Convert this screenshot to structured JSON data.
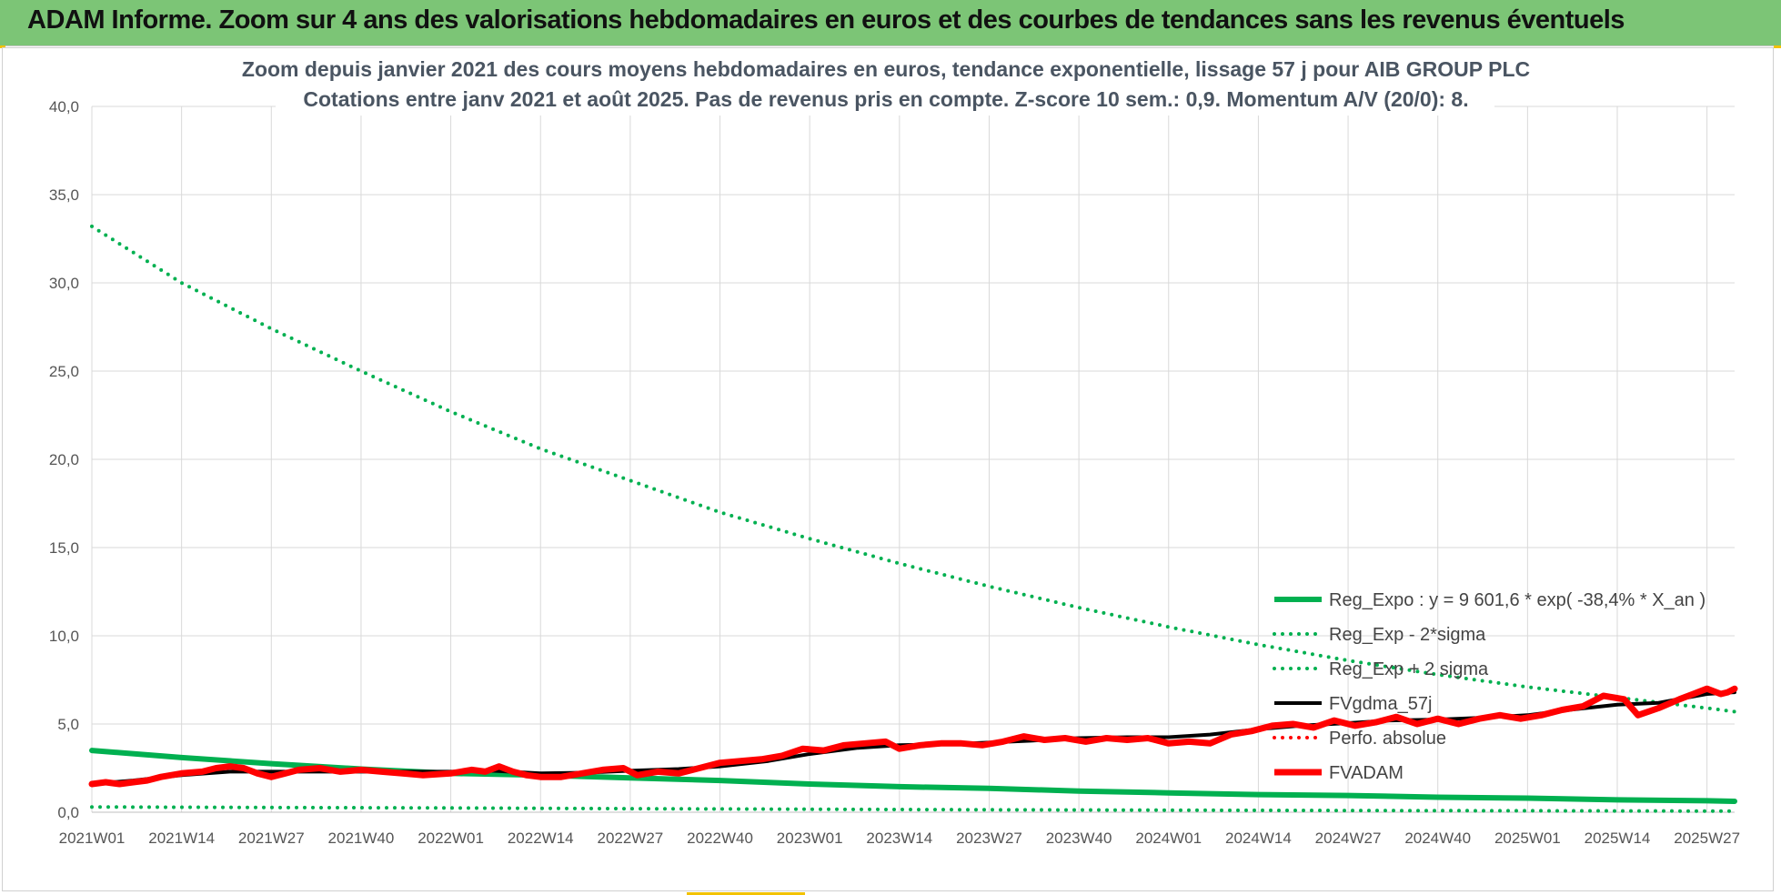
{
  "header": {
    "title": "ADAM Informe. Zoom sur 4 ans des valorisations hebdomadaires en euros et des courbes de tendances sans les revenus éventuels"
  },
  "chart_data": {
    "type": "line",
    "title_lines": [
      "Zoom depuis janvier 2021 des cours moyens hebdomadaires en euros, tendance exponentielle, lissage 57 j pour AIB GROUP PLC",
      "Cotations entre janv 2021 et août 2025.  Pas de revenus pris en compte. Z-score 10 sem.: 0,9. Momentum A/V (20/0): 8."
    ],
    "xlabel": "",
    "ylabel": "",
    "ylim": [
      0,
      40
    ],
    "y_ticks": [
      "0,0",
      "5,0",
      "10,0",
      "15,0",
      "20,0",
      "25,0",
      "30,0",
      "35,0",
      "40,0"
    ],
    "x_range_weeks": [
      0,
      238
    ],
    "x_ticks": [
      {
        "week": 0,
        "label": "2021W01"
      },
      {
        "week": 13,
        "label": "2021W14"
      },
      {
        "week": 26,
        "label": "2021W27"
      },
      {
        "week": 39,
        "label": "2021W40"
      },
      {
        "week": 52,
        "label": "2022W01"
      },
      {
        "week": 65,
        "label": "2022W14"
      },
      {
        "week": 78,
        "label": "2022W27"
      },
      {
        "week": 91,
        "label": "2022W40"
      },
      {
        "week": 104,
        "label": "2023W01"
      },
      {
        "week": 117,
        "label": "2023W14"
      },
      {
        "week": 130,
        "label": "2023W27"
      },
      {
        "week": 143,
        "label": "2023W40"
      },
      {
        "week": 156,
        "label": "2024W01"
      },
      {
        "week": 169,
        "label": "2024W14"
      },
      {
        "week": 182,
        "label": "2024W27"
      },
      {
        "week": 195,
        "label": "2024W40"
      },
      {
        "week": 208,
        "label": "2025W01"
      },
      {
        "week": 221,
        "label": "2025W14"
      },
      {
        "week": 234,
        "label": "2025W27"
      }
    ],
    "grid": true,
    "legend_position": "right",
    "series": [
      {
        "name": "Reg_Expo : y = 9 601,6 * exp( -38,4% *  X_an )",
        "color": "#00b050",
        "style": "solid",
        "width": 6,
        "points": [
          [
            0,
            3.5
          ],
          [
            13,
            3.1
          ],
          [
            26,
            2.75
          ],
          [
            39,
            2.45
          ],
          [
            52,
            2.2
          ],
          [
            65,
            2.1
          ],
          [
            78,
            1.95
          ],
          [
            91,
            1.8
          ],
          [
            104,
            1.6
          ],
          [
            117,
            1.45
          ],
          [
            130,
            1.35
          ],
          [
            143,
            1.2
          ],
          [
            156,
            1.1
          ],
          [
            169,
            1.0
          ],
          [
            182,
            0.95
          ],
          [
            195,
            0.85
          ],
          [
            208,
            0.8
          ],
          [
            221,
            0.7
          ],
          [
            234,
            0.65
          ],
          [
            238,
            0.62
          ]
        ]
      },
      {
        "name": "Reg_Exp - 2*sigma",
        "color": "#00b050",
        "style": "dotted",
        "width": 4,
        "points": [
          [
            0,
            0.3
          ],
          [
            26,
            0.27
          ],
          [
            52,
            0.24
          ],
          [
            78,
            0.2
          ],
          [
            104,
            0.17
          ],
          [
            130,
            0.14
          ],
          [
            156,
            0.12
          ],
          [
            182,
            0.1
          ],
          [
            208,
            0.08
          ],
          [
            238,
            0.06
          ]
        ]
      },
      {
        "name": "Reg_Exp + 2 sigma",
        "color": "#00b050",
        "style": "dotted",
        "width": 4,
        "points": [
          [
            0,
            33.2
          ],
          [
            13,
            30.0
          ],
          [
            26,
            27.4
          ],
          [
            39,
            25.0
          ],
          [
            52,
            22.7
          ],
          [
            65,
            20.6
          ],
          [
            78,
            18.8
          ],
          [
            91,
            17.0
          ],
          [
            104,
            15.5
          ],
          [
            117,
            14.1
          ],
          [
            130,
            12.8
          ],
          [
            143,
            11.6
          ],
          [
            156,
            10.5
          ],
          [
            169,
            9.5
          ],
          [
            182,
            8.6
          ],
          [
            195,
            7.8
          ],
          [
            208,
            7.1
          ],
          [
            221,
            6.5
          ],
          [
            234,
            5.9
          ],
          [
            238,
            5.7
          ]
        ]
      },
      {
        "name": "FVgdma_57j",
        "color": "#000000",
        "style": "solid",
        "width": 4,
        "points": [
          [
            0,
            1.6
          ],
          [
            6,
            1.8
          ],
          [
            13,
            2.1
          ],
          [
            20,
            2.3
          ],
          [
            26,
            2.3
          ],
          [
            33,
            2.3
          ],
          [
            39,
            2.3
          ],
          [
            46,
            2.3
          ],
          [
            52,
            2.3
          ],
          [
            58,
            2.35
          ],
          [
            65,
            2.2
          ],
          [
            72,
            2.25
          ],
          [
            78,
            2.35
          ],
          [
            85,
            2.45
          ],
          [
            91,
            2.6
          ],
          [
            98,
            2.9
          ],
          [
            104,
            3.3
          ],
          [
            111,
            3.65
          ],
          [
            117,
            3.8
          ],
          [
            124,
            3.85
          ],
          [
            130,
            3.95
          ],
          [
            136,
            4.05
          ],
          [
            143,
            4.2
          ],
          [
            150,
            4.25
          ],
          [
            156,
            4.25
          ],
          [
            162,
            4.4
          ],
          [
            169,
            4.7
          ],
          [
            175,
            4.9
          ],
          [
            182,
            5.05
          ],
          [
            188,
            5.2
          ],
          [
            195,
            5.25
          ],
          [
            201,
            5.35
          ],
          [
            208,
            5.5
          ],
          [
            214,
            5.8
          ],
          [
            221,
            6.1
          ],
          [
            227,
            6.2
          ],
          [
            234,
            6.7
          ],
          [
            238,
            6.8
          ]
        ]
      },
      {
        "name": "Perfo. absolue",
        "color": "#ff0000",
        "style": "dotted",
        "width": 4,
        "points": []
      },
      {
        "name": "FVADAM",
        "color": "#ff0000",
        "style": "solid",
        "width": 7,
        "points": [
          [
            0,
            1.6
          ],
          [
            2,
            1.7
          ],
          [
            4,
            1.6
          ],
          [
            6,
            1.7
          ],
          [
            8,
            1.8
          ],
          [
            10,
            2.0
          ],
          [
            13,
            2.2
          ],
          [
            16,
            2.3
          ],
          [
            18,
            2.5
          ],
          [
            20,
            2.6
          ],
          [
            22,
            2.5
          ],
          [
            24,
            2.2
          ],
          [
            26,
            2.0
          ],
          [
            28,
            2.2
          ],
          [
            30,
            2.4
          ],
          [
            33,
            2.5
          ],
          [
            36,
            2.3
          ],
          [
            39,
            2.4
          ],
          [
            42,
            2.3
          ],
          [
            45,
            2.2
          ],
          [
            48,
            2.1
          ],
          [
            52,
            2.2
          ],
          [
            55,
            2.4
          ],
          [
            57,
            2.3
          ],
          [
            59,
            2.6
          ],
          [
            61,
            2.3
          ],
          [
            63,
            2.1
          ],
          [
            65,
            2.0
          ],
          [
            68,
            2.0
          ],
          [
            71,
            2.2
          ],
          [
            74,
            2.4
          ],
          [
            77,
            2.5
          ],
          [
            79,
            2.1
          ],
          [
            82,
            2.3
          ],
          [
            85,
            2.2
          ],
          [
            88,
            2.5
          ],
          [
            91,
            2.8
          ],
          [
            94,
            2.9
          ],
          [
            97,
            3.0
          ],
          [
            100,
            3.2
          ],
          [
            103,
            3.6
          ],
          [
            106,
            3.5
          ],
          [
            109,
            3.8
          ],
          [
            112,
            3.9
          ],
          [
            115,
            4.0
          ],
          [
            117,
            3.6
          ],
          [
            120,
            3.8
          ],
          [
            123,
            3.9
          ],
          [
            126,
            3.9
          ],
          [
            129,
            3.8
          ],
          [
            132,
            4.0
          ],
          [
            135,
            4.3
          ],
          [
            138,
            4.1
          ],
          [
            141,
            4.2
          ],
          [
            144,
            4.0
          ],
          [
            147,
            4.2
          ],
          [
            150,
            4.1
          ],
          [
            153,
            4.2
          ],
          [
            156,
            3.9
          ],
          [
            159,
            4.0
          ],
          [
            162,
            3.9
          ],
          [
            165,
            4.4
          ],
          [
            168,
            4.6
          ],
          [
            171,
            4.9
          ],
          [
            174,
            5.0
          ],
          [
            177,
            4.8
          ],
          [
            180,
            5.2
          ],
          [
            183,
            4.9
          ],
          [
            186,
            5.1
          ],
          [
            189,
            5.4
          ],
          [
            192,
            5.0
          ],
          [
            195,
            5.3
          ],
          [
            198,
            5.0
          ],
          [
            201,
            5.3
          ],
          [
            204,
            5.5
          ],
          [
            207,
            5.3
          ],
          [
            210,
            5.5
          ],
          [
            213,
            5.8
          ],
          [
            216,
            6.0
          ],
          [
            219,
            6.6
          ],
          [
            222,
            6.4
          ],
          [
            224,
            5.5
          ],
          [
            227,
            5.9
          ],
          [
            230,
            6.4
          ],
          [
            232,
            6.7
          ],
          [
            234,
            7.0
          ],
          [
            236,
            6.7
          ],
          [
            237,
            6.8
          ],
          [
            238,
            7.0
          ]
        ]
      }
    ]
  }
}
